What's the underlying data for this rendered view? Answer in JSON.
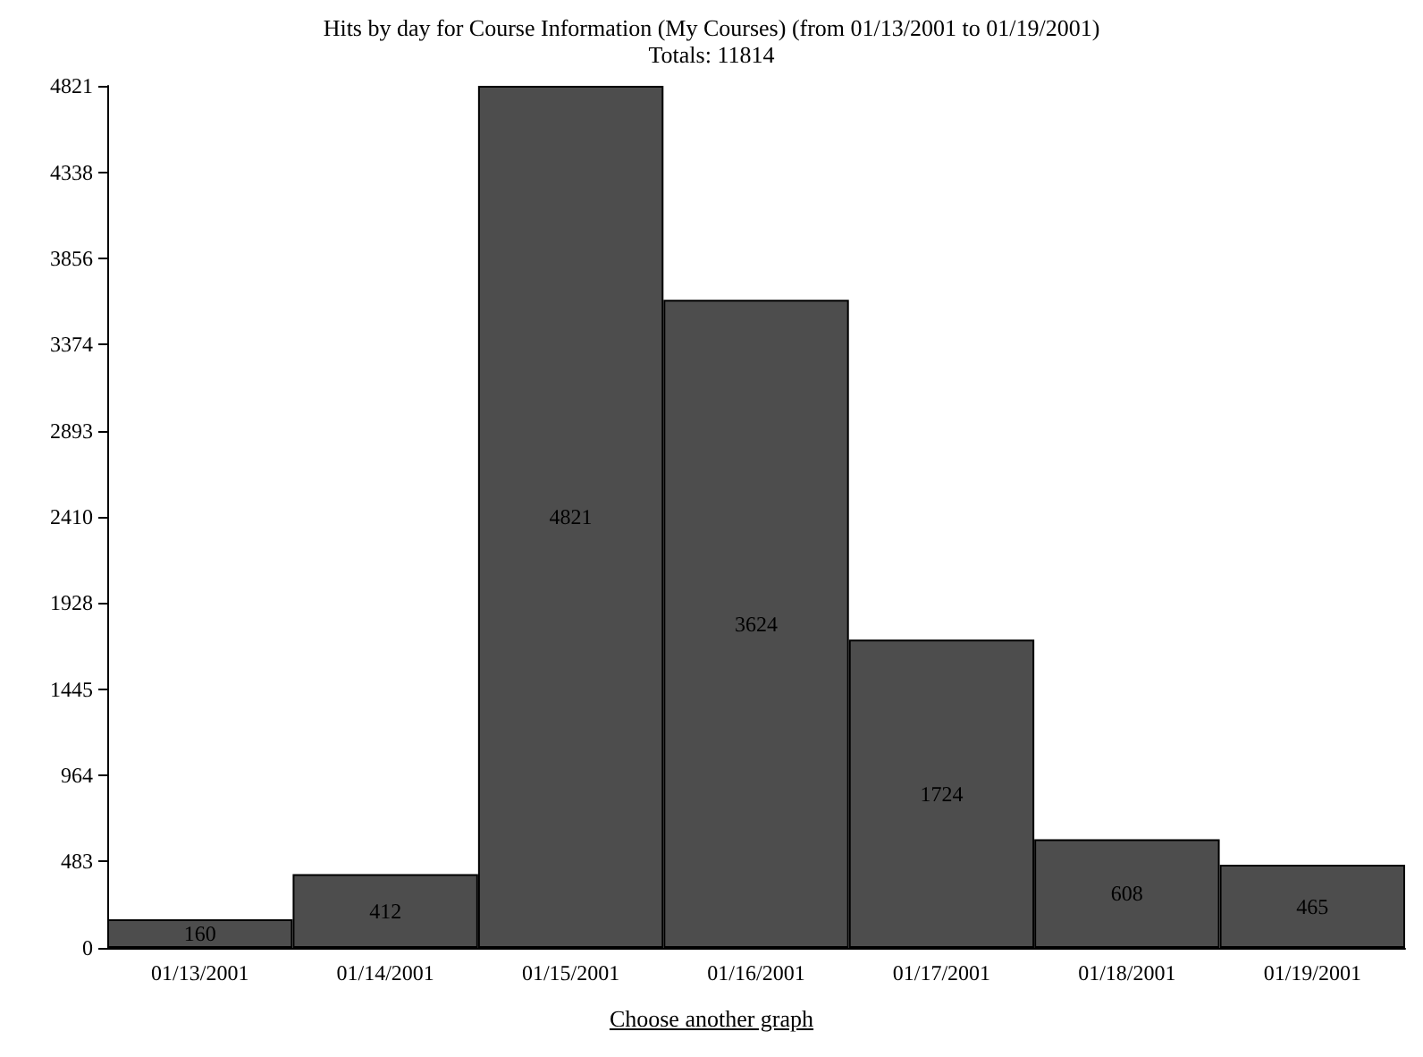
{
  "chart_data": {
    "type": "bar",
    "title": "Hits by day for Course Information (My Courses) (from 01/13/2001 to 01/19/2001)",
    "subtitle": "Totals: 11814",
    "categories": [
      "01/13/2001",
      "01/14/2001",
      "01/15/2001",
      "01/16/2001",
      "01/17/2001",
      "01/18/2001",
      "01/19/2001"
    ],
    "values": [
      160,
      412,
      4821,
      3624,
      1724,
      608,
      465
    ],
    "color": "#4d4d4d",
    "ylim": [
      0,
      4821
    ],
    "yticks": [
      0,
      483,
      964,
      1445,
      1928,
      2410,
      2893,
      3374,
      3856,
      4338,
      4821
    ],
    "data_labels": true,
    "grid": false,
    "annotations": [
      "Choose another graph"
    ]
  }
}
